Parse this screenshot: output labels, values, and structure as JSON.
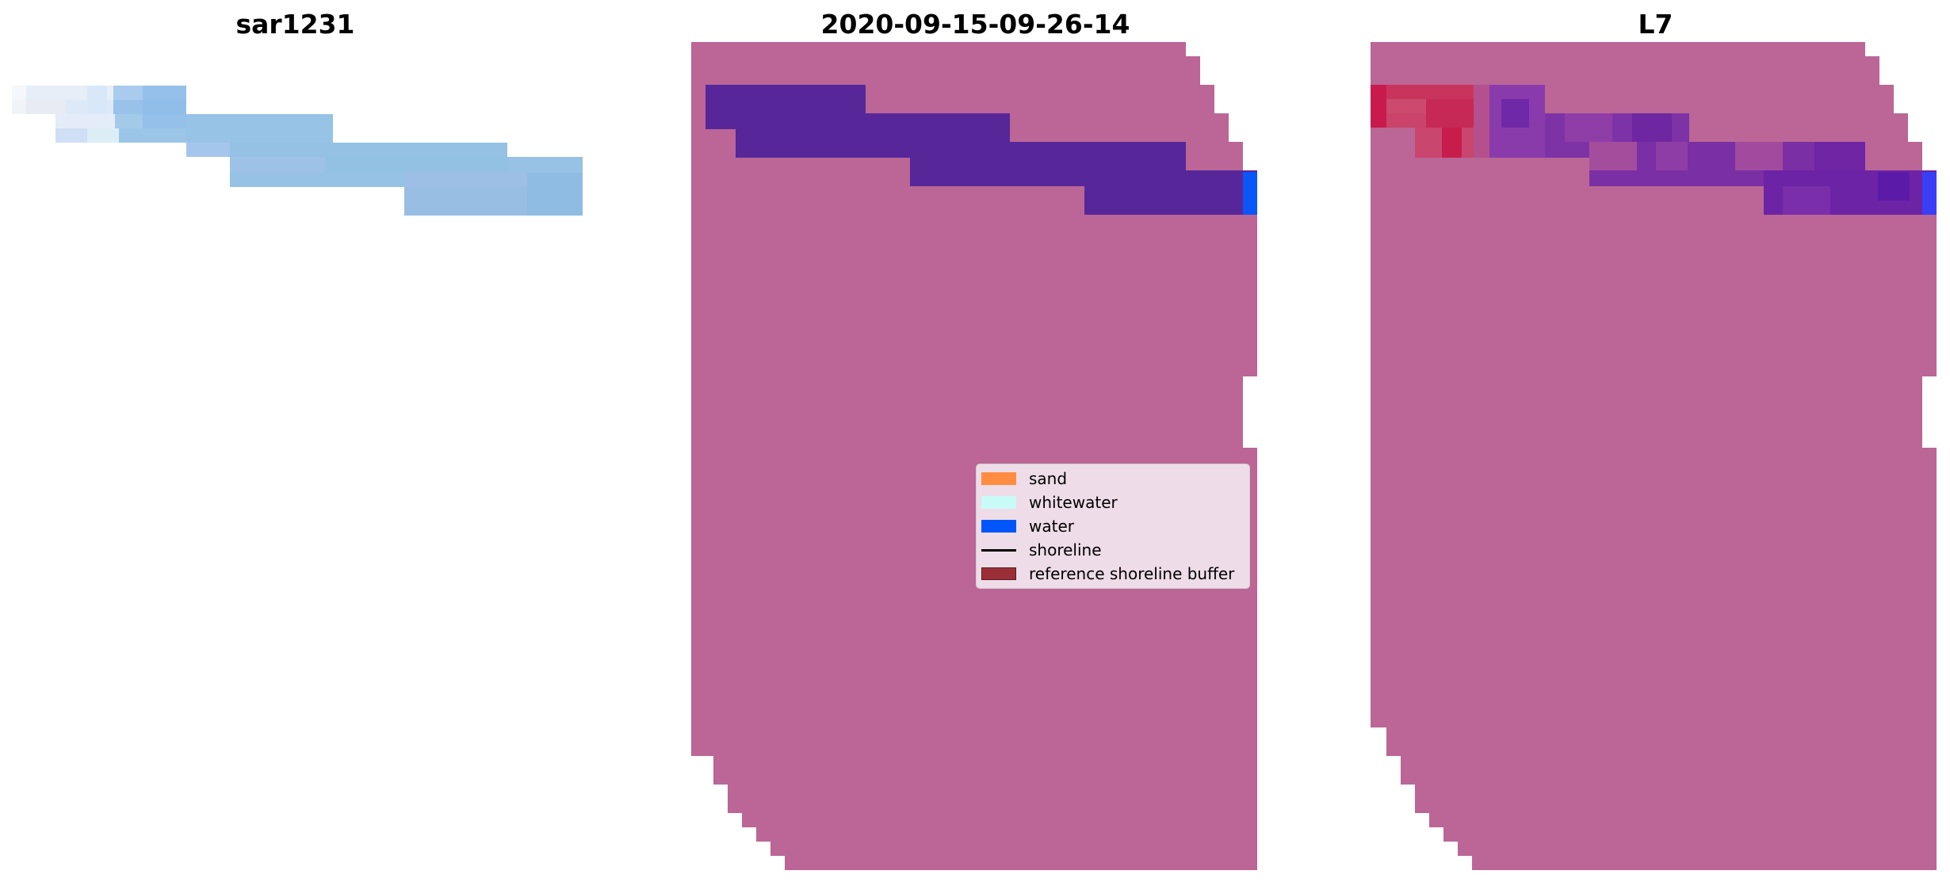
{
  "panels": [
    {
      "title": "sar1231"
    },
    {
      "title": "2020-09-15-09-26-14"
    },
    {
      "title": "L7"
    }
  ],
  "legend": [
    {
      "label": "sand",
      "color": "#ff8c40",
      "kind": "patch"
    },
    {
      "label": "whitewater",
      "color": "#c8fbf8",
      "kind": "patch"
    },
    {
      "label": "water",
      "color": "#0055ff",
      "kind": "patch"
    },
    {
      "label": "shoreline",
      "color": "#000000",
      "kind": "line"
    },
    {
      "label": "reference shoreline buffer",
      "color": "#9b2f38",
      "kind": "patch"
    }
  ],
  "colors": {
    "classified_background": "#bb6696",
    "buffer_band": "#57279a",
    "water_edge": "#0a56fb",
    "satellite_image_blue": "#93c3e6"
  }
}
